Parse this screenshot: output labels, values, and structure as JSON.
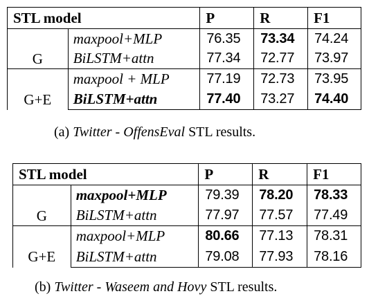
{
  "tables": [
    {
      "headers": {
        "model": "STL model",
        "p": "P",
        "r": "R",
        "f1": "F1"
      },
      "rows": [
        {
          "group": "",
          "model": "maxpool+MLP",
          "p": "76.35",
          "r": "73.34",
          "f1": "74.24",
          "model_bold": false,
          "p_bold": false,
          "r_bold": true,
          "f1_bold": false
        },
        {
          "group": "G",
          "model": "BiLSTM+attn",
          "p": "77.34",
          "r": "72.77",
          "f1": "73.97",
          "model_bold": false,
          "p_bold": false,
          "r_bold": false,
          "f1_bold": false
        },
        {
          "group": "",
          "model": "maxpool + MLP",
          "p": "77.19",
          "r": "72.73",
          "f1": "73.95",
          "model_bold": false,
          "p_bold": false,
          "r_bold": false,
          "f1_bold": false
        },
        {
          "group": "G+E",
          "model": "BiLSTM+attn",
          "p": "77.40",
          "r": "73.27",
          "f1": "74.40",
          "model_bold": true,
          "p_bold": true,
          "r_bold": false,
          "f1_bold": true
        }
      ],
      "caption": {
        "label": "(a)",
        "dataset": "Twitter",
        "sep": " - ",
        "subset": "OffensEval",
        "suffix": " STL results."
      }
    },
    {
      "headers": {
        "model": "STL model",
        "p": "P",
        "r": "R",
        "f1": "F1"
      },
      "rows": [
        {
          "group": "",
          "model": "maxpool+MLP",
          "p": "79.39",
          "r": "78.20",
          "f1": "78.33",
          "model_bold": true,
          "p_bold": false,
          "r_bold": true,
          "f1_bold": true
        },
        {
          "group": "G",
          "model": "BiLSTM+attn",
          "p": "77.97",
          "r": "77.57",
          "f1": "77.49",
          "model_bold": false,
          "p_bold": false,
          "r_bold": false,
          "f1_bold": false
        },
        {
          "group": "",
          "model": "maxpool+MLP",
          "p": "80.66",
          "r": "77.13",
          "f1": "78.31",
          "model_bold": false,
          "p_bold": true,
          "r_bold": false,
          "f1_bold": false
        },
        {
          "group": "G+E",
          "model": "BiLSTM+attn",
          "p": "79.08",
          "r": "77.93",
          "f1": "78.16",
          "model_bold": false,
          "p_bold": false,
          "r_bold": false,
          "f1_bold": false
        }
      ],
      "caption": {
        "label": "(b)",
        "dataset": "Twitter",
        "sep": " - ",
        "subset": "Waseem and Hovy",
        "suffix": " STL results."
      }
    }
  ]
}
